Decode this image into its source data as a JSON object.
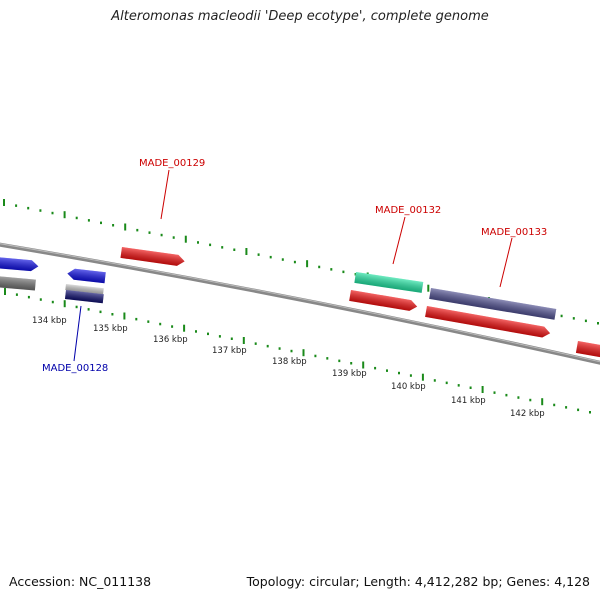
{
  "title": "Alteromonas macleodii 'Deep ecotype', complete genome",
  "footer": {
    "accession": "Accession: NC_011138",
    "topology": "Topology: circular; Length: 4,412,282 bp; Genes: 4,128"
  },
  "colors": {
    "backbone": "#888888",
    "tick": "#1a8a1a",
    "red_label": "#cc0000",
    "blue_label": "#0000aa"
  },
  "scale_labels": [
    "134 kbp",
    "135 kbp",
    "136 kbp",
    "137 kbp",
    "138 kbp",
    "139 kbp",
    "140 kbp",
    "141 kbp",
    "142 kbp"
  ],
  "gene_labels": [
    {
      "name": "MADE_00129",
      "color": "#cc0000"
    },
    {
      "name": "MADE_00132",
      "color": "#cc0000"
    },
    {
      "name": "MADE_00133",
      "color": "#cc0000"
    },
    {
      "name": "MADE_00128",
      "color": "#0000aa"
    }
  ],
  "features": [
    {
      "name": "forward-blue-gene",
      "color": "#1010e0"
    },
    {
      "name": "forward-gray-gene",
      "color": "#707070"
    },
    {
      "name": "reverse-blue-gene",
      "color": "#1010e0"
    },
    {
      "name": "reverse-gray-gene",
      "color": "#c8c8c8"
    },
    {
      "name": "reverse-navy-gene",
      "color": "#101070"
    },
    {
      "name": "forward-red-gene-00129",
      "color": "#ee1111"
    },
    {
      "name": "cyan-gene-00132",
      "color": "#22e0a0"
    },
    {
      "name": "red-gene-00132",
      "color": "#ee1111"
    },
    {
      "name": "purple-gene-00133",
      "color": "#505090"
    },
    {
      "name": "red-gene-00133",
      "color": "#ee1111"
    },
    {
      "name": "red-gene-edge",
      "color": "#ee1111"
    }
  ]
}
